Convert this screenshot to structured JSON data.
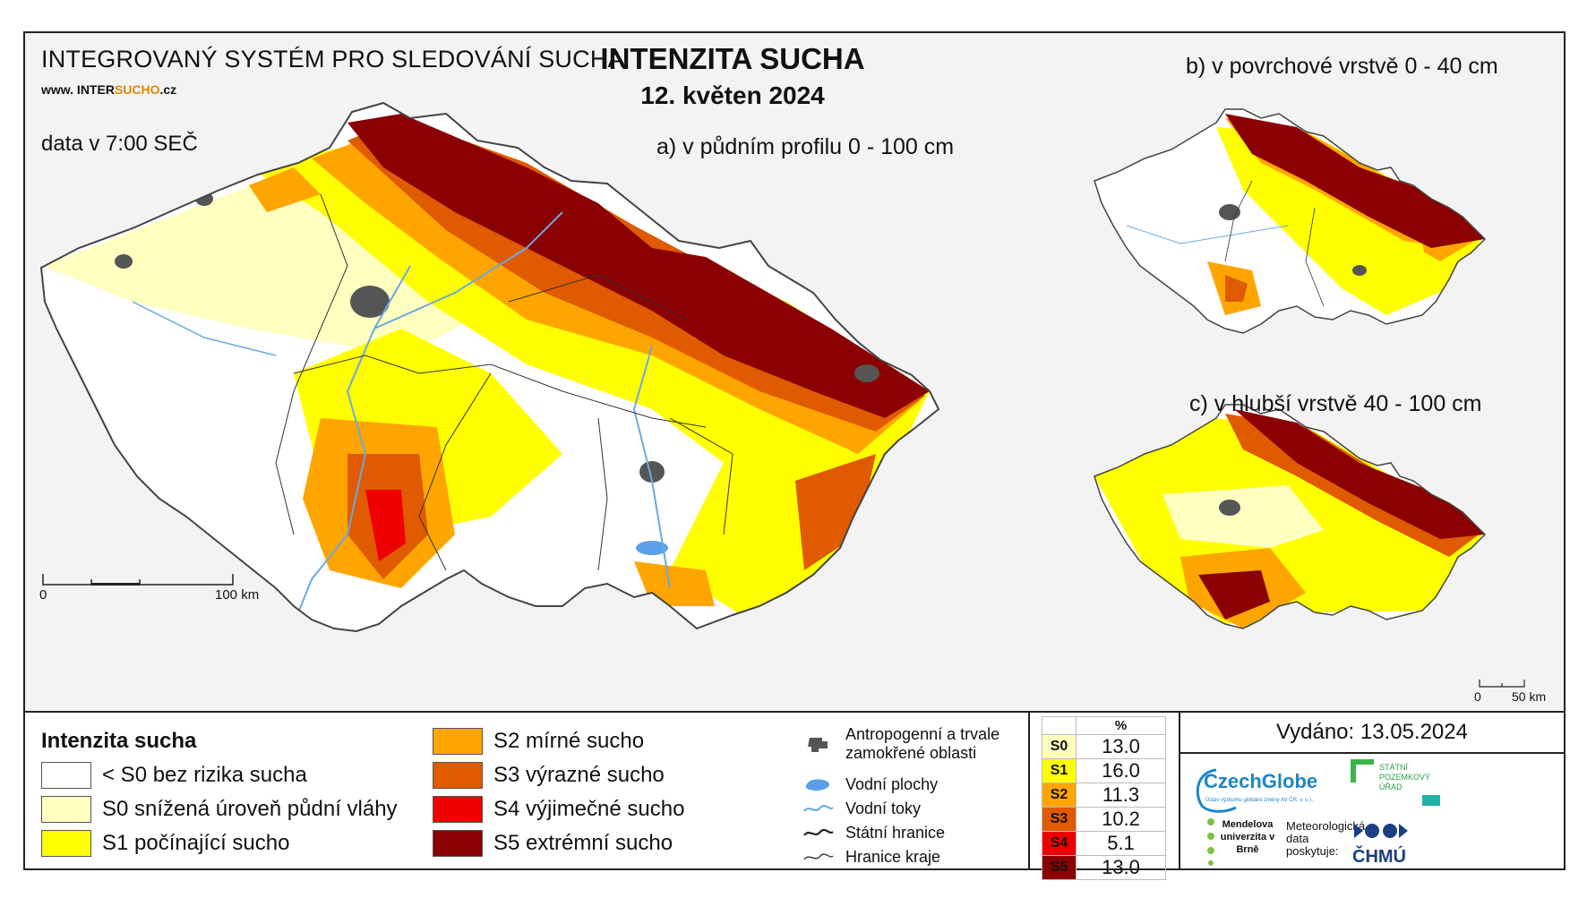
{
  "header": {
    "system_title": "INTEGROVANÝ SYSTÉM PRO SLEDOVÁNÍ SUCHA",
    "url_prefix": "www. INTER",
    "url_highlight": "SUCHO",
    "url_suffix": ".cz",
    "data_time": "data v 7:00 SEČ",
    "main_title": "INTENZITA SUCHA",
    "date": "12. květen 2024"
  },
  "maps": {
    "a_label": "a) v půdním profilu 0 - 100 cm",
    "b_label": "b) v povrchové vrstvě 0 - 40 cm",
    "c_label": "c) v hlubší vrstvě 40 - 100 cm",
    "scale_a": {
      "start": "0",
      "end": "100 km"
    },
    "scale_c": {
      "start": "0",
      "end": "50 km"
    }
  },
  "legend": {
    "title": "Intenzita sucha",
    "classes": [
      {
        "label": "< S0 bez rizika sucha",
        "color": "#ffffff"
      },
      {
        "label": "S0 snížená úroveň půdní vláhy",
        "color": "#ffffc0"
      },
      {
        "label": "S1 počínající sucho",
        "color": "#ffff00"
      },
      {
        "label": "S2 mírné sucho",
        "color": "#ffa500"
      },
      {
        "label": "S3 výrazné sucho",
        "color": "#e05a00"
      },
      {
        "label": "S4 výjimečné sucho",
        "color": "#ee0000"
      },
      {
        "label": "S5 extrémní sucho",
        "color": "#8b0000"
      }
    ],
    "symbols": [
      {
        "label": "Antropogenní a trvale zamokřené oblasti",
        "icon": "urban-area-icon"
      },
      {
        "label": "Vodní plochy",
        "icon": "water-body-icon"
      },
      {
        "label": "Vodní toky",
        "icon": "river-icon"
      },
      {
        "label": "Státní hranice",
        "icon": "state-border-icon"
      },
      {
        "label": "Hranice kraje",
        "icon": "region-border-icon"
      }
    ]
  },
  "stats": {
    "header": "%",
    "rows": [
      {
        "code": "S0",
        "value": "13.0",
        "color": "#ffffc0"
      },
      {
        "code": "S1",
        "value": "16.0",
        "color": "#ffff00"
      },
      {
        "code": "S2",
        "value": "11.3",
        "color": "#ffa500"
      },
      {
        "code": "S3",
        "value": "10.2",
        "color": "#e05a00"
      },
      {
        "code": "S4",
        "value": "5.1",
        "color": "#ee0000"
      },
      {
        "code": "S5",
        "value": "13.0",
        "color": "#8b0000"
      }
    ]
  },
  "footer": {
    "issued": "Vydáno: 13.05.2024",
    "logo_czechglobe": "CzechGlobe",
    "logo_czechglobe_sub": "Ústav výzkumu globální změny AV ČR, v. v. i.",
    "logo_spu": "STÁTNÍ POZEMKOVÝ ÚŘAD",
    "logo_mendel": "Mendelova univerzita v Brně",
    "met_data": "Meteorologická data poskytuje:",
    "logo_chmu": "ČHMÚ"
  }
}
